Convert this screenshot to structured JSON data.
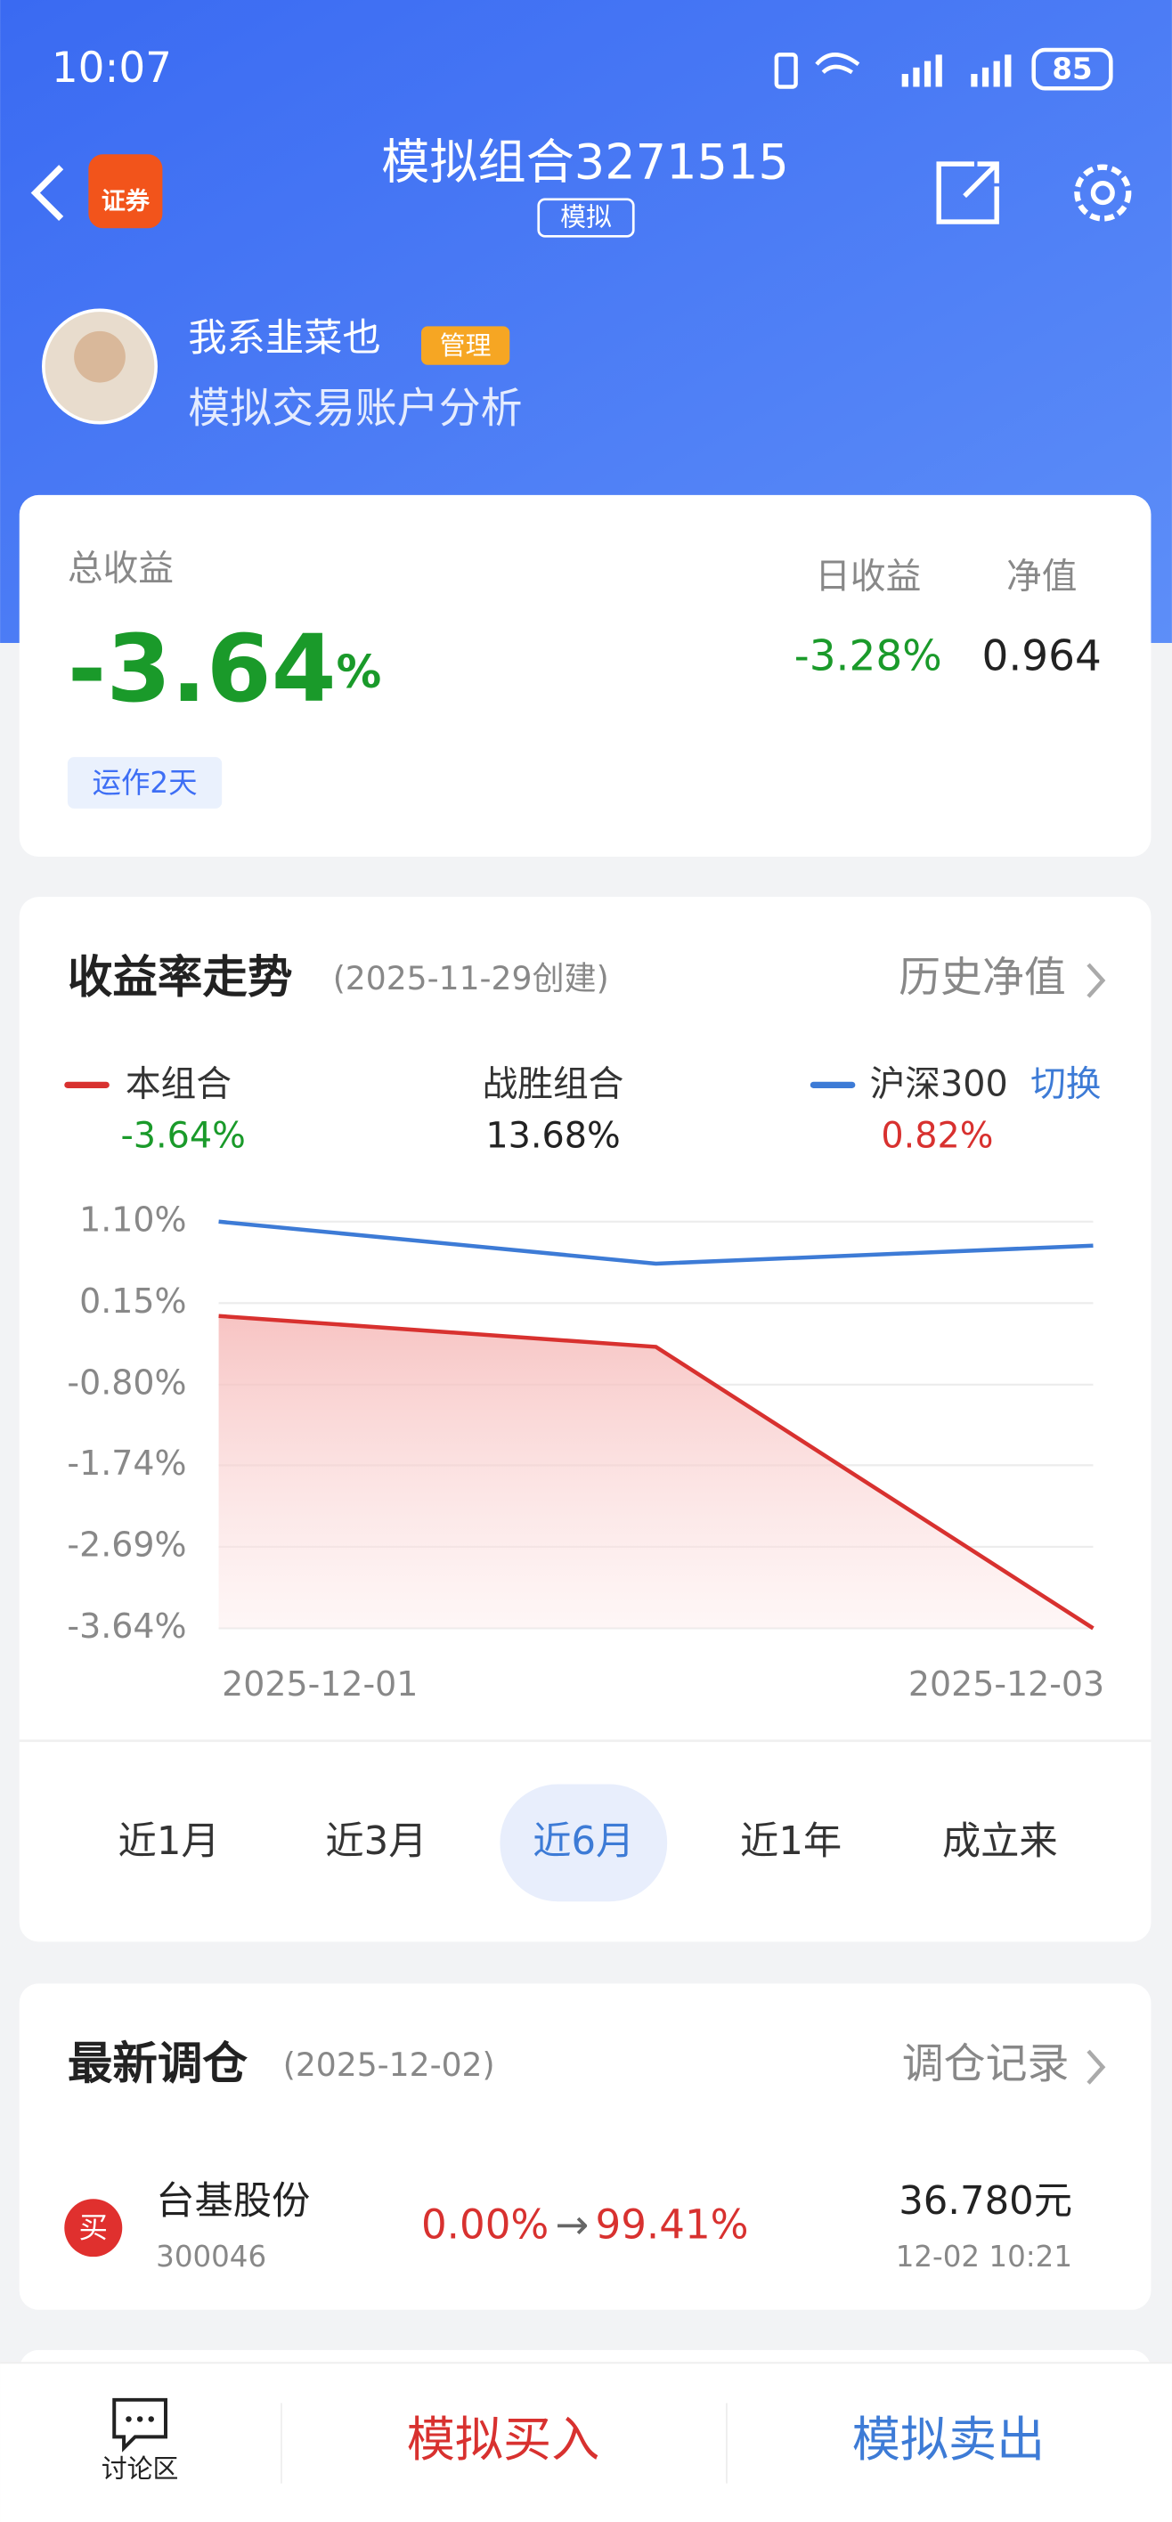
{
  "status_bar": {
    "time": "10:07",
    "battery": "85"
  },
  "header": {
    "title": "模拟组合3271515",
    "badge": "模拟",
    "app_icon": "证券"
  },
  "profile": {
    "name": "我系韭菜也",
    "role": "管理",
    "subtitle": "模拟交易账户分析"
  },
  "summary": {
    "total_label": "总收益",
    "total_return": {
      "value": "-3.64",
      "unit": "%"
    },
    "days": "运作2天",
    "daily_label": "日收益",
    "daily_value": "-3.28%",
    "nav_label": "净值",
    "nav_value": "0.964"
  },
  "trend": {
    "title": "收益率走势",
    "created": "(2025-11-29创建)",
    "link": "历史净值",
    "legend": [
      {
        "name": "本组合",
        "value": "-3.64%"
      },
      {
        "name": "战胜组合",
        "value": "13.68%"
      },
      {
        "name": "沪深300",
        "value": "0.82%",
        "action": "切换"
      }
    ],
    "tabs": [
      "近1月",
      "近3月",
      "近6月",
      "近1年",
      "成立来"
    ],
    "selected_tab": 2
  },
  "chart_data": {
    "type": "line",
    "categories": [
      "2025-12-01",
      null,
      "2025-12-03"
    ],
    "series": [
      {
        "name": "本组合",
        "color": "#d8312f",
        "values": [
          0.0,
          -0.36,
          -3.64
        ],
        "fill": true
      },
      {
        "name": "沪深300",
        "color": "#3d7bd6",
        "values": [
          1.1,
          0.61,
          0.82
        ]
      }
    ],
    "ylim": [
      -3.64,
      1.1
    ],
    "yticks": [
      {
        "value": 1.1,
        "label": "1.10%"
      },
      {
        "value": 0.15,
        "label": "0.15%"
      },
      {
        "value": -0.8,
        "label": "-0.80%"
      },
      {
        "value": -1.74,
        "label": "-1.74%"
      },
      {
        "value": -2.69,
        "label": "-2.69%"
      },
      {
        "value": -3.64,
        "label": "-3.64%"
      }
    ],
    "grid": true
  },
  "rebalance": {
    "title": "最新调仓",
    "date": "(2025-12-02)",
    "link": "调仓记录",
    "items": [
      {
        "action": "买",
        "name": "台基股份",
        "code": "300046",
        "from": "0.00%",
        "arrow": "→",
        "to": "99.41%",
        "price": "36.780元",
        "time": "12-02  10:21"
      }
    ]
  },
  "bottom_bar": {
    "discuss": "讨论区",
    "buy": "模拟买入",
    "sell": "模拟卖出"
  }
}
